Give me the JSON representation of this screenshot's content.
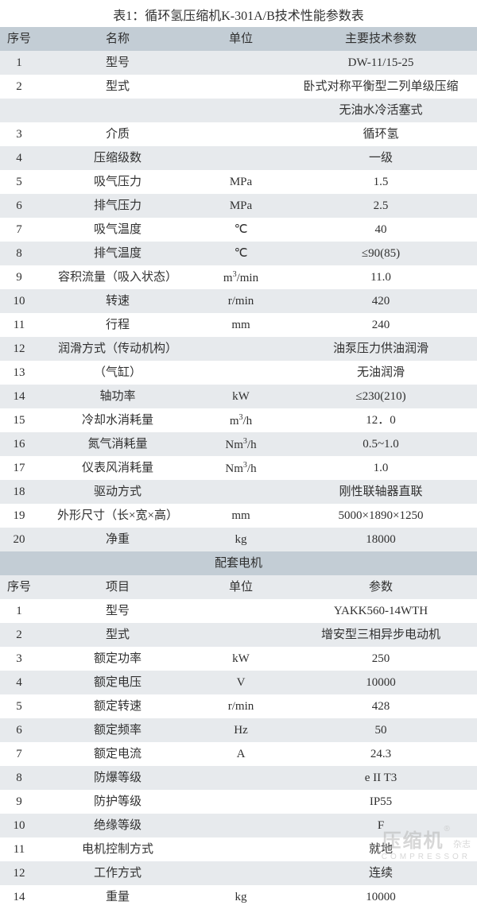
{
  "title": "表1：循环氢压缩机K-301A/B技术性能参数表",
  "columns_main": [
    "序号",
    "名称",
    "单位",
    "主要技术参数"
  ],
  "rows_main": [
    [
      "1",
      "型号",
      "",
      "DW-11/15-25"
    ],
    [
      "2",
      "型式",
      "",
      "卧式对称平衡型二列单级压缩"
    ],
    [
      "",
      "",
      "",
      "无油水冷活塞式"
    ],
    [
      "3",
      "介质",
      "",
      "循环氢"
    ],
    [
      "4",
      "压缩级数",
      "",
      "一级"
    ],
    [
      "5",
      "吸气压力",
      "MPa",
      "1.5"
    ],
    [
      "6",
      "排气压力",
      "MPa",
      "2.5"
    ],
    [
      "7",
      "吸气温度",
      "℃",
      "40"
    ],
    [
      "8",
      "排气温度",
      "℃",
      "≤90(85)"
    ],
    [
      "9",
      "容积流量（吸入状态）",
      "m³/min",
      "11.0"
    ],
    [
      "10",
      "转速",
      "r/min",
      "420"
    ],
    [
      "11",
      "行程",
      "mm",
      "240"
    ],
    [
      "12",
      "润滑方式（传动机构）",
      "",
      "油泵压力供油润滑"
    ],
    [
      "13",
      "（气缸）",
      "",
      "无油润滑"
    ],
    [
      "14",
      "轴功率",
      "kW",
      "≤230(210)"
    ],
    [
      "15",
      "冷却水消耗量",
      "m³/h",
      "12．0"
    ],
    [
      "16",
      "氮气消耗量",
      "Nm³/h",
      "0.5~1.0"
    ],
    [
      "17",
      "仪表风消耗量",
      "Nm³/h",
      "1.0"
    ],
    [
      "18",
      "驱动方式",
      "",
      "刚性联轴器直联"
    ],
    [
      "19",
      "外形尺寸（长×宽×高）",
      "mm",
      "5000×1890×1250"
    ],
    [
      "20",
      "净重",
      "kg",
      "18000"
    ]
  ],
  "section2_title": "配套电机",
  "columns_motor": [
    "序号",
    "项目",
    "单位",
    "参数"
  ],
  "rows_motor": [
    [
      "1",
      "型号",
      "",
      "YAKK560-14WTH"
    ],
    [
      "2",
      "型式",
      "",
      "增安型三相异步电动机"
    ],
    [
      "3",
      "额定功率",
      "kW",
      "250"
    ],
    [
      "4",
      "额定电压",
      "V",
      "10000"
    ],
    [
      "5",
      "额定转速",
      "r/min",
      "428"
    ],
    [
      "6",
      "额定频率",
      "Hz",
      "50"
    ],
    [
      "7",
      "额定电流",
      "A",
      "24.3"
    ],
    [
      "8",
      "防爆等级",
      "",
      "e II T3"
    ],
    [
      "9",
      "防护等级",
      "",
      "IP55"
    ],
    [
      "10",
      "绝缘等级",
      "",
      "F"
    ],
    [
      "11",
      "电机控制方式",
      "",
      "就地"
    ],
    [
      "12",
      "工作方式",
      "",
      "连续"
    ],
    [
      "14",
      "重量",
      "kg",
      "10000"
    ]
  ],
  "watermark": {
    "cn": "压缩机",
    "suffix": "杂志",
    "en": "COMPRESSOR"
  },
  "colors": {
    "header_bg": "#c3cdd5",
    "odd_bg": "#e7eaed",
    "even_bg": "#ffffff",
    "text": "#303030",
    "watermark": "#b7b7b7"
  }
}
